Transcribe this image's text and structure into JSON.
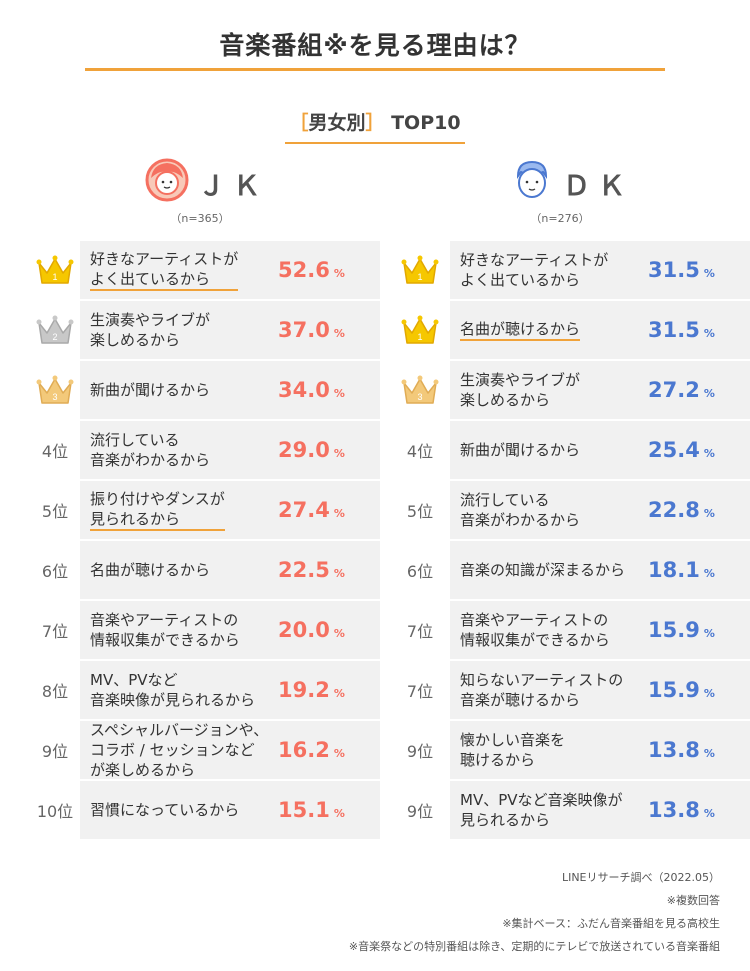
{
  "title": "音楽番組※を見る理由は？",
  "subtitle": {
    "open": "［",
    "text": "男女別",
    "close": "］",
    "extra": "TOP10"
  },
  "colors": {
    "accent": "#f0a23a",
    "jk": "#f57060",
    "dk": "#4b78d0",
    "card": "#f1f1f1"
  },
  "unit": "%",
  "columns": [
    {
      "key": "jk",
      "name": "ＪＫ",
      "n": "（n=365）",
      "icon": "girl-face-icon",
      "items": [
        {
          "rank": "1",
          "crown": "gold",
          "label": "好きなアーティストが\nよく出ているから",
          "value": "52.6",
          "highlight": true
        },
        {
          "rank": "2",
          "crown": "silver",
          "label": "生演奏やライブが\n楽しめるから",
          "value": "37.0",
          "highlight": false
        },
        {
          "rank": "3",
          "crown": "bronze",
          "label": "新曲が聞けるから",
          "value": "34.0",
          "highlight": false
        },
        {
          "rank": "4位",
          "crown": "",
          "label": "流行している\n音楽がわかるから",
          "value": "29.0",
          "highlight": false
        },
        {
          "rank": "5位",
          "crown": "",
          "label": "振り付けやダンスが\n見られるから",
          "value": "27.4",
          "highlight": true
        },
        {
          "rank": "6位",
          "crown": "",
          "label": "名曲が聴けるから",
          "value": "22.5",
          "highlight": false
        },
        {
          "rank": "7位",
          "crown": "",
          "label": "音楽やアーティストの\n情報収集ができるから",
          "value": "20.0",
          "highlight": false
        },
        {
          "rank": "8位",
          "crown": "",
          "label": "MV、PVなど\n音楽映像が見られるから",
          "value": "19.2",
          "highlight": false
        },
        {
          "rank": "9位",
          "crown": "",
          "label": "スペシャルバージョンや、\nコラボ / セッションなど\nが楽しめるから",
          "value": "16.2",
          "highlight": false
        },
        {
          "rank": "10位",
          "crown": "",
          "label": "習慣になっているから",
          "value": "15.1",
          "highlight": false
        }
      ]
    },
    {
      "key": "dk",
      "name": "ＤＫ",
      "n": "（n=276）",
      "icon": "boy-face-icon",
      "items": [
        {
          "rank": "1",
          "crown": "gold",
          "label": "好きなアーティストが\nよく出ているから",
          "value": "31.5",
          "highlight": false
        },
        {
          "rank": "1",
          "crown": "gold",
          "label": "名曲が聴けるから",
          "value": "31.5",
          "highlight": true
        },
        {
          "rank": "3",
          "crown": "bronze",
          "label": "生演奏やライブが\n楽しめるから",
          "value": "27.2",
          "highlight": false
        },
        {
          "rank": "4位",
          "crown": "",
          "label": "新曲が聞けるから",
          "value": "25.4",
          "highlight": false
        },
        {
          "rank": "5位",
          "crown": "",
          "label": "流行している\n音楽がわかるから",
          "value": "22.8",
          "highlight": false
        },
        {
          "rank": "6位",
          "crown": "",
          "label": "音楽の知識が深まるから",
          "value": "18.1",
          "highlight": false
        },
        {
          "rank": "7位",
          "crown": "",
          "label": "音楽やアーティストの\n情報収集ができるから",
          "value": "15.9",
          "highlight": false
        },
        {
          "rank": "7位",
          "crown": "",
          "label": "知らないアーティストの\n音楽が聴けるから",
          "value": "15.9",
          "highlight": false
        },
        {
          "rank": "9位",
          "crown": "",
          "label": "懐かしい音楽を\n聴けるから",
          "value": "13.8",
          "highlight": false
        },
        {
          "rank": "9位",
          "crown": "",
          "label": "MV、PVなど音楽映像が\n見られるから",
          "value": "13.8",
          "highlight": false
        }
      ]
    }
  ],
  "notes": [
    "LINEリサーチ調べ（2022.05）",
    "※複数回答",
    "※集計ベース：ふだん音楽番組を見る高校生",
    "※音楽祭などの特別番組は除き、定期的にテレビで放送されている音楽番組"
  ],
  "chart_data": {
    "type": "table",
    "title": "音楽番組※を見る理由は？",
    "subtitle": "男女別 TOP10",
    "unit": "%",
    "series": [
      {
        "name": "ＪＫ",
        "n": "n=365",
        "categories": [
          "好きなアーティストがよく出ているから",
          "生演奏やライブが楽しめるから",
          "新曲が聞けるから",
          "流行している音楽がわかるから",
          "振り付けやダンスが見られるから",
          "名曲が聴けるから",
          "音楽やアーティストの情報収集ができるから",
          "MV、PVなど音楽映像が見られるから",
          "スペシャルバージョンや、コラボ / セッションなどが楽しめるから",
          "習慣になっているから"
        ],
        "values": [
          52.6,
          37.0,
          34.0,
          29.0,
          27.4,
          22.5,
          20.0,
          19.2,
          16.2,
          15.1
        ]
      },
      {
        "name": "ＤＫ",
        "n": "n=276",
        "categories": [
          "好きなアーティストがよく出ているから",
          "名曲が聴けるから",
          "生演奏やライブが楽しめるから",
          "新曲が聞けるから",
          "流行している音楽がわかるから",
          "音楽の知識が深まるから",
          "音楽やアーティストの情報収集ができるから",
          "知らないアーティストの音楽が聴けるから",
          "懐かしい音楽を聴けるから",
          "MV、PVなど音楽映像が見られるから"
        ],
        "values": [
          31.5,
          31.5,
          27.2,
          25.4,
          22.8,
          18.1,
          15.9,
          15.9,
          13.8,
          13.8
        ]
      }
    ]
  }
}
